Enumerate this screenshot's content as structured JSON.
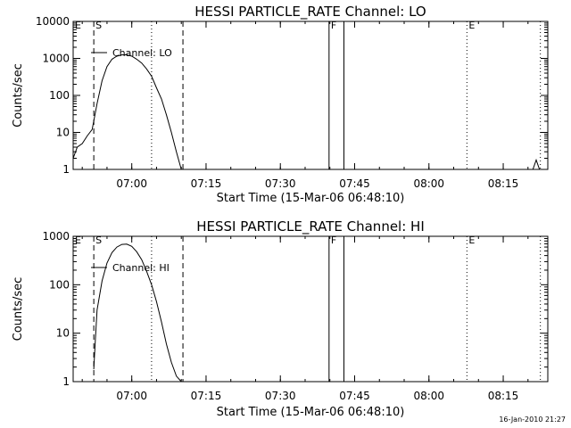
{
  "footer": {
    "timestamp": "16-Jan-2010 21:27"
  },
  "chart_data": [
    {
      "type": "line",
      "title": "HESSI PARTICLE_RATE Channel: LO",
      "xlabel": "Start Time (15-Mar-06 06:48:10)",
      "ylabel": "Counts/sec",
      "y_scale": "log",
      "ylim": [
        1,
        10000
      ],
      "y_tick_labels": [
        "1",
        "10",
        "100",
        "1000",
        "10000"
      ],
      "y_ticks": [
        1,
        10,
        100,
        1000,
        10000
      ],
      "x_tick_labels": [
        "07:00",
        "07:15",
        "07:30",
        "07:45",
        "08:00",
        "08:15"
      ],
      "x_ticks": [
        "07:00",
        "07:15",
        "07:30",
        "07:45",
        "08:00",
        "08:15"
      ],
      "xlim": [
        "06:48:10",
        "08:24:00"
      ],
      "legend": {
        "position": "top-left",
        "entries": [
          "Channel: LO"
        ]
      },
      "series": [
        {
          "name": "Channel: LO",
          "x": [
            "06:48:10",
            "06:49:00",
            "06:50:00",
            "06:51:00",
            "06:52:00",
            "06:53:00",
            "06:54:00",
            "06:55:00",
            "06:56:00",
            "06:57:00",
            "06:58:00",
            "06:59:00",
            "07:00:00",
            "07:01:00",
            "07:02:00",
            "07:03:00",
            "07:04:00",
            "07:05:00",
            "07:06:00",
            "07:07:00",
            "07:08:00",
            "07:09:00",
            "07:10:00"
          ],
          "values": [
            2,
            4,
            5,
            8,
            12,
            60,
            250,
            600,
            950,
            1150,
            1250,
            1250,
            1150,
            950,
            750,
            520,
            330,
            160,
            80,
            30,
            10,
            3,
            1
          ]
        },
        {
          "name": "",
          "x": [
            "08:21:00",
            "08:21:40",
            "08:22:20"
          ],
          "values": [
            1,
            1.8,
            1
          ]
        }
      ],
      "markers": [
        {
          "label": "E",
          "type": "dashed",
          "x": "06:48:10",
          "show_line": false
        },
        {
          "label": "S",
          "type": "dashed",
          "x": "06:52:20"
        },
        {
          "label": "",
          "type": "dotted",
          "x": "07:04:00"
        },
        {
          "label": "",
          "type": "dashed",
          "x": "07:10:20"
        },
        {
          "label": "F",
          "type": "solid",
          "x": "07:39:50"
        },
        {
          "label": "",
          "type": "solid",
          "x": "07:42:50"
        },
        {
          "label": "E",
          "type": "dotted",
          "x": "08:07:40"
        },
        {
          "label": "",
          "type": "dotted",
          "x": "08:22:30"
        }
      ]
    },
    {
      "type": "line",
      "title": "HESSI PARTICLE_RATE Channel: HI",
      "xlabel": "Start Time (15-Mar-06 06:48:10)",
      "ylabel": "Counts/sec",
      "y_scale": "log",
      "ylim": [
        1,
        1000
      ],
      "y_tick_labels": [
        "1",
        "10",
        "100",
        "1000"
      ],
      "y_ticks": [
        1,
        10,
        100,
        1000
      ],
      "x_tick_labels": [
        "07:00",
        "07:15",
        "07:30",
        "07:45",
        "08:00",
        "08:15"
      ],
      "x_ticks": [
        "07:00",
        "07:15",
        "07:30",
        "07:45",
        "08:00",
        "08:15"
      ],
      "xlim": [
        "06:48:10",
        "08:24:00"
      ],
      "legend": {
        "position": "top-left",
        "entries": [
          "Channel: HI"
        ]
      },
      "series": [
        {
          "name": "Channel: HI",
          "x": [
            "06:52:20",
            "06:52:40",
            "06:53:00",
            "06:54:00",
            "06:55:00",
            "06:56:00",
            "06:57:00",
            "06:58:00",
            "06:59:00",
            "07:00:00",
            "07:01:00",
            "07:02:00",
            "07:03:00",
            "07:04:00",
            "07:05:00",
            "07:06:00",
            "07:07:00",
            "07:08:00",
            "07:09:00",
            "07:10:00"
          ],
          "values": [
            1.8,
            8,
            30,
            120,
            280,
            460,
            600,
            680,
            690,
            620,
            480,
            330,
            190,
            100,
            45,
            17,
            6,
            2.5,
            1.3,
            1
          ]
        }
      ],
      "markers": [
        {
          "label": "E",
          "type": "dashed",
          "x": "06:48:10",
          "show_line": false
        },
        {
          "label": "S",
          "type": "dashed",
          "x": "06:52:20"
        },
        {
          "label": "",
          "type": "dotted",
          "x": "07:04:00"
        },
        {
          "label": "",
          "type": "dashed",
          "x": "07:10:20"
        },
        {
          "label": "F",
          "type": "solid",
          "x": "07:39:50"
        },
        {
          "label": "",
          "type": "solid",
          "x": "07:42:50"
        },
        {
          "label": "E",
          "type": "dotted",
          "x": "08:07:40"
        },
        {
          "label": "",
          "type": "dotted",
          "x": "08:22:30"
        }
      ]
    }
  ]
}
